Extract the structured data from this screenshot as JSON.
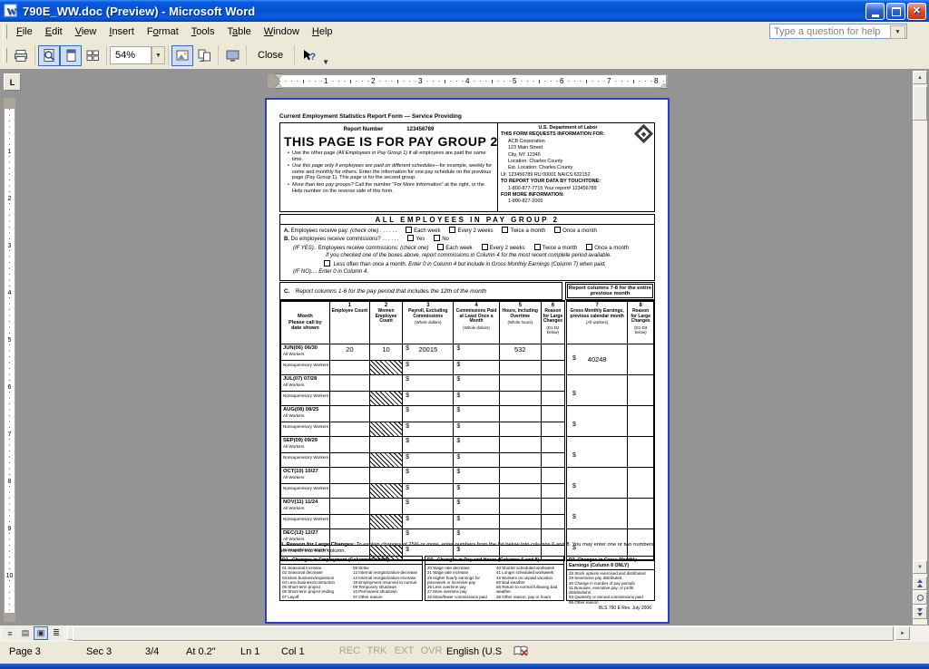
{
  "window": {
    "title": "790E_WW.doc (Preview) - Microsoft Word",
    "help_placeholder": "Type a question for help"
  },
  "menu": {
    "items": [
      {
        "label": "File",
        "u": 0
      },
      {
        "label": "Edit",
        "u": 0
      },
      {
        "label": "View",
        "u": 0
      },
      {
        "label": "Insert",
        "u": 0
      },
      {
        "label": "Format",
        "u": 1
      },
      {
        "label": "Tools",
        "u": 0
      },
      {
        "label": "Table",
        "u": 1
      },
      {
        "label": "Window",
        "u": 0
      },
      {
        "label": "Help",
        "u": 0
      }
    ]
  },
  "toolbar": {
    "zoom": "54%",
    "close": "Close"
  },
  "ruler": {
    "tab": "L",
    "h_numbers": [
      "1",
      "2",
      "3",
      "4",
      "5",
      "6",
      "7",
      "8"
    ],
    "v_numbers": [
      "1",
      "2",
      "3",
      "4",
      "5",
      "6",
      "7",
      "8",
      "9",
      "10"
    ]
  },
  "colors": {
    "titlebar_blue": "#0855DD",
    "accent_blue": "#316AC5",
    "page_border_blue": "#2B3FC8",
    "close_red": "#E0532D"
  },
  "form": {
    "top_title": "Current Employment Statistics Report Form — Service Providing",
    "report_label": "Report Number",
    "report_number": "123456789",
    "page_title": "THIS PAGE IS FOR PAY GROUP 2",
    "bullets": [
      [
        {
          "t": "Use the other page "
        },
        {
          "t": "(All Employees in Pay Group 1)",
          "i": 1
        },
        {
          "t": " if all employees are paid the same time."
        }
      ],
      [
        {
          "t": "Use this page only if employees are paid on different schedules",
          "i": 1
        },
        {
          "t": "—for example, weekly for some and monthly for others. Enter the information for one pay schedule on the previous page (Pay Group 1). This page is for the second group."
        }
      ],
      [
        {
          "t": "More than two pay groups?",
          "i": 1
        },
        {
          "t": " Call the number \"For More Information\" at the right, or the Help number on the reverse side of this form."
        }
      ]
    ],
    "dol": [
      {
        "t": "U.S. Department of Labor",
        "c": "b ctr"
      },
      {
        "t": "THIS FORM REQUESTS INFORMATION FOR:",
        "c": "b"
      },
      {
        "t": "ACB Corporation",
        "c": "ind"
      },
      {
        "t": "123 Main Street",
        "c": "ind"
      },
      {
        "t": "City, NY   12345",
        "c": "ind"
      },
      {
        "t": "Location: Charles County",
        "c": "ind"
      },
      {
        "t": "Est. Location: Charles County",
        "c": "ind"
      },
      {
        "t": "UI: 123456789   RU:00001  NAICS:632152",
        "c": ""
      },
      {
        "t": "TO REPORT YOUR DATA BY TOUCHTONE:",
        "c": "b"
      },
      {
        "t": "1-800-877-7715      Your report# 123456789",
        "c": "ind"
      },
      {
        "t": "FOR MORE INFORMATION:",
        "c": "b"
      },
      {
        "t": "1-800-827-2005",
        "c": "ind"
      }
    ],
    "band": "ALL EMPLOYEES IN PAY GROUP 2",
    "a": {
      "label": "A.",
      "text": "Employees receive pay:",
      "check": "(check one)",
      "dots": " . . . . . .",
      "options": [
        "Each week",
        "Every 2 weeks",
        "Twice a month",
        "Once a month"
      ]
    },
    "b": {
      "label": "B.",
      "text": "Do employees receive commissions?",
      "dots": " . . . . . .",
      "options": [
        "Yes",
        "No"
      ],
      "ifyes_label": "(IF YES)..",
      "ifyes_text": "Employees receive commissions:",
      "ifyes_check": "(check one)",
      "ifyes_options": [
        "Each week",
        "Every 2 weeks",
        "Twice a month",
        "Once a month"
      ],
      "note": "If you checked one of the boxes above, report commissions in Column 4 for the most recent complete period available.",
      "less_text": "Less often than once a month. ",
      "less_italic": "Enter 0 in Column 4 but include in Gross Monthly Earnings (Column 7) when paid.",
      "ifno_label": "(IF NO)....",
      "ifno_text": "Enter 0 in Column 4."
    },
    "c": {
      "label": "C.",
      "text": "Report columns 1-6 for the pay period that includes the 12th of the month",
      "right": "Report columns 7-8 for the entire previous month"
    },
    "table": {
      "month_header": [
        "Month",
        "Please call by",
        "date shown"
      ],
      "columns": [
        {
          "n": "1",
          "t": "Employee Count",
          "s": ""
        },
        {
          "n": "2",
          "t": "Women Employee Count",
          "s": ""
        },
        {
          "n": "3",
          "t": "Payroll, Excluding Commissions",
          "s": "(Whole dollars)"
        },
        {
          "n": "4",
          "t": "Commissions Paid at Least Once a Month",
          "s": "(Whole dollars)"
        },
        {
          "n": "5",
          "t": "Hours, Including Overtime",
          "s": "(Whole hours)"
        },
        {
          "n": "6",
          "t": "Reason for Large Changes",
          "s": "(D1-D2 below)"
        },
        {
          "n": "7",
          "t": "Gross Monthly Earnings, previous calendar month",
          "s": "(All workers)"
        },
        {
          "n": "8",
          "t": "Reason for Large Changes",
          "s": "(D1-D3 below)"
        }
      ],
      "sub_labels": [
        "All Workers",
        "Nonsupervisory Workers"
      ],
      "dollar": "$",
      "months": [
        {
          "label": "JUN(06) 06/30",
          "emp": "20",
          "women": "10",
          "payroll": "20015",
          "comm": "",
          "hours": "532",
          "reason": "",
          "gross": "40248",
          "reason8": "",
          "n_payroll": "",
          "n_comm": ""
        },
        {
          "label": "JUL(07) 07/28",
          "emp": "",
          "women": "",
          "payroll": "",
          "comm": "",
          "hours": "",
          "reason": "",
          "gross": "",
          "reason8": "",
          "n_payroll": "",
          "n_comm": ""
        },
        {
          "label": "AUG(08) 08/25",
          "emp": "",
          "women": "",
          "payroll": "",
          "comm": "",
          "hours": "",
          "reason": "",
          "gross": "",
          "reason8": "",
          "n_payroll": "",
          "n_comm": ""
        },
        {
          "label": "SEP(09) 09/29",
          "emp": "",
          "women": "",
          "payroll": "",
          "comm": "",
          "hours": "",
          "reason": "",
          "gross": "",
          "reason8": "",
          "n_payroll": "",
          "n_comm": ""
        },
        {
          "label": "OCT(10) 10/27",
          "emp": "",
          "women": "",
          "payroll": "",
          "comm": "",
          "hours": "",
          "reason": "",
          "gross": "",
          "reason8": "",
          "n_payroll": "",
          "n_comm": ""
        },
        {
          "label": "NOV(11) 11/24",
          "emp": "",
          "women": "",
          "payroll": "",
          "comm": "",
          "hours": "",
          "reason": "",
          "gross": "",
          "reason8": "",
          "n_payroll": "",
          "n_comm": ""
        },
        {
          "label": "DEC(12) 12/27",
          "emp": "",
          "women": "",
          "payroll": "",
          "comm": "",
          "hours": "",
          "reason": "",
          "gross": "",
          "reason8": "",
          "n_payroll": "",
          "n_comm": ""
        }
      ]
    },
    "d_intro": {
      "label": "D.",
      "title": "Reason for Large Changes:",
      "text": "To explain changes of 25% or more, enter numbers from the list below into columns 6 and 8. You may enter one or two numbers per month into each column."
    },
    "d1": {
      "title": "D1.",
      "heading": "Changes in Employment (Columns 6 and 8)",
      "col1": [
        "01 Seasonal increase",
        "02 Seasonal decrease",
        "03 More business/expansion",
        "04 Less business/contraction",
        "05 Short-term project",
        "06 Short-term project ending",
        "07 Layoff"
      ],
      "col2": [
        "08 Strike",
        "12 Internal reorganization-decrease",
        "13 Internal reorganization-increase",
        "19 Employment resumed to normal",
        "09 Temporary shutdown",
        "10 Permanent shutdown",
        "37 Other reason"
      ]
    },
    "d2": {
      "title": "D2.",
      "heading": "Changes in Pay and Hours (Columns 6 and 8)",
      "col1": [
        "20 Wage rate decrease",
        "21 Wage rate increase",
        "25 Higher hourly earnings for piecework or incentive pay",
        "26 Less overtime pay",
        "27 More overtime pay",
        "32 More/fewer commissions paid"
      ],
      "col2": [
        "40 Shorter scheduled workweek",
        "41 Longer scheduled workweek",
        "45 Workers on unpaid vacation",
        "50 Bad weather",
        "55 Return to normal following bad weather",
        "38 Other reason, pay or hours"
      ]
    },
    "d3": {
      "title": "D3.",
      "heading": "Changes in Gross Monthly Earnings (Column 8 ONLY)",
      "items": [
        "28 Stock options exercised and distributed",
        "29 Severance pay distributed",
        "30 Change in number of pay periods",
        "31 Bonuses, executive pay, or profit distributions",
        "93 Quarterly or annual commissions paid",
        "95 Other reason"
      ]
    },
    "footer": "BLS 790 E   Rev. July 2006"
  },
  "statusbar": {
    "page": "Page 3",
    "sec": "Sec 3",
    "pos": "3/4",
    "at": "At 0.2\"",
    "ln": "Ln 1",
    "col": "Col 1",
    "modes": [
      "REC",
      "TRK",
      "EXT",
      "OVR"
    ],
    "lang": "English (U.S"
  }
}
